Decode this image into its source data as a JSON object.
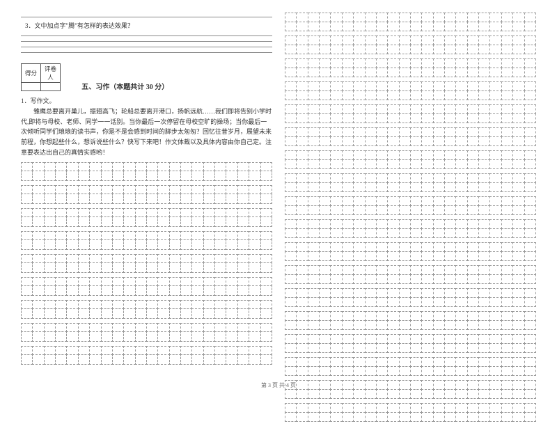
{
  "question": {
    "number": "3．",
    "text": "文中加点字\"腾\"有怎样的表达效果？"
  },
  "answerLines": {
    "above": 1,
    "below": 4,
    "lineColor": "#888888",
    "spacing": 15
  },
  "scoreBox": {
    "label1": "得分",
    "label2": "评卷人",
    "borderColor": "#555555"
  },
  "section": {
    "title": "五、习作（本题共计 30 分）"
  },
  "essay": {
    "number": "1．写作文。",
    "prompt": "雏鹰总要离开巢儿，振翅高飞；轮船总要离开港口，扬帆远航……我们即将告别小学时代,即将与母校、老师、同学一一话别。当你最后一次停留在母校空旷的操场；当你最后一次倾听同学们琅琅的读书声，你是不是会感到时间的脚步太匆匆？回忆往昔岁月，展望未来前程，你想起些什么，想诉说些什么？快写下来吧！作文体裁以及具体内容由你自己定。注意要表达出自己的真情实感哟！"
  },
  "gridSpec": {
    "cellBorder": "1px dashed #999999",
    "colsPerRow": 22,
    "left": {
      "paragraphs": [
        {
          "rows": 2
        },
        {
          "rows": 2
        },
        {
          "rows": 2
        },
        {
          "rows": 2
        },
        {
          "rows": 2
        },
        {
          "rows": 2
        },
        {
          "rows": 2
        },
        {
          "rows": 2
        },
        {
          "rows": 2
        }
      ]
    },
    "right": {
      "paragraphs": [
        {
          "rows": 2
        },
        {
          "rows": 2
        },
        {
          "rows": 2
        },
        {
          "rows": 2
        },
        {
          "rows": 2
        },
        {
          "rows": 2
        },
        {
          "rows": 2
        },
        {
          "rows": 2
        },
        {
          "rows": 2
        },
        {
          "rows": 2
        },
        {
          "rows": 2
        },
        {
          "rows": 2
        },
        {
          "rows": 2
        },
        {
          "rows": 2
        },
        {
          "rows": 2
        },
        {
          "rows": 2
        },
        {
          "rows": 2
        },
        {
          "rows": 2
        }
      ]
    }
  },
  "footer": {
    "text": "第 3 页  共 4 页"
  },
  "layout": {
    "pageWidth": 800,
    "pageHeight": 565,
    "columns": 2,
    "background": "#ffffff",
    "textColor": "#333333",
    "baseFontSize": 9
  }
}
